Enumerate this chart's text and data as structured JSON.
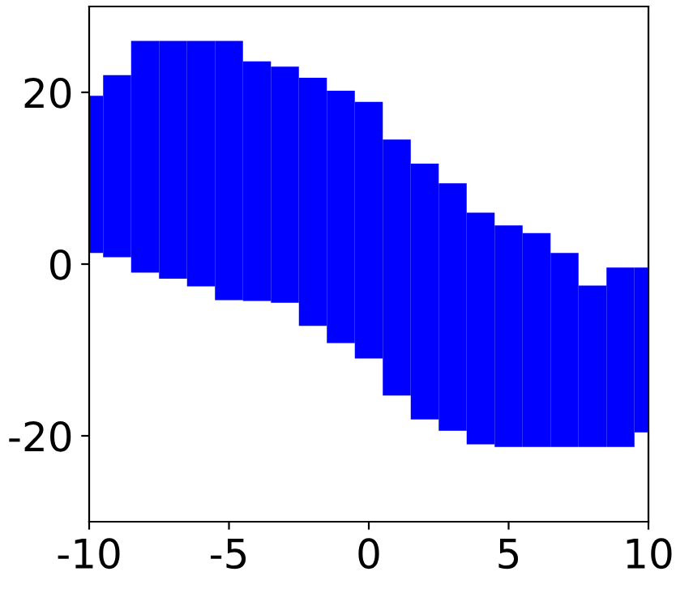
{
  "chart_data": {
    "type": "bar",
    "x": [
      -10,
      -9,
      -8,
      -7,
      -6,
      -5,
      -4,
      -3,
      -2,
      -1,
      0,
      1,
      2,
      3,
      4,
      5,
      6,
      7,
      8,
      9,
      10
    ],
    "series": [
      {
        "color": "#0000ff",
        "base": [
          1.3,
          0.8,
          -1.0,
          -1.7,
          -2.6,
          -4.2,
          -4.3,
          -4.5,
          -7.2,
          -9.2,
          -11,
          -15.3,
          -18.1,
          -19.4,
          -21,
          -21.3,
          -21.3,
          -21.3,
          -21.3,
          -21.3,
          -19.6
        ],
        "values": [
          18.3,
          21.2,
          27,
          27.7,
          28.6,
          30.2,
          27.9,
          27.5,
          28.9,
          29.4,
          29.9,
          29.8,
          29.8,
          28.8,
          27,
          25.8,
          24.9,
          22.6,
          18.8,
          20.9,
          19.2
        ]
      }
    ],
    "xlim": [
      -10,
      10
    ],
    "ylim": [
      -30,
      30
    ],
    "xticks": [
      -10,
      -5,
      0,
      5,
      10
    ],
    "yticks": [
      -20,
      0,
      20
    ],
    "grid": false,
    "legend": false
  }
}
